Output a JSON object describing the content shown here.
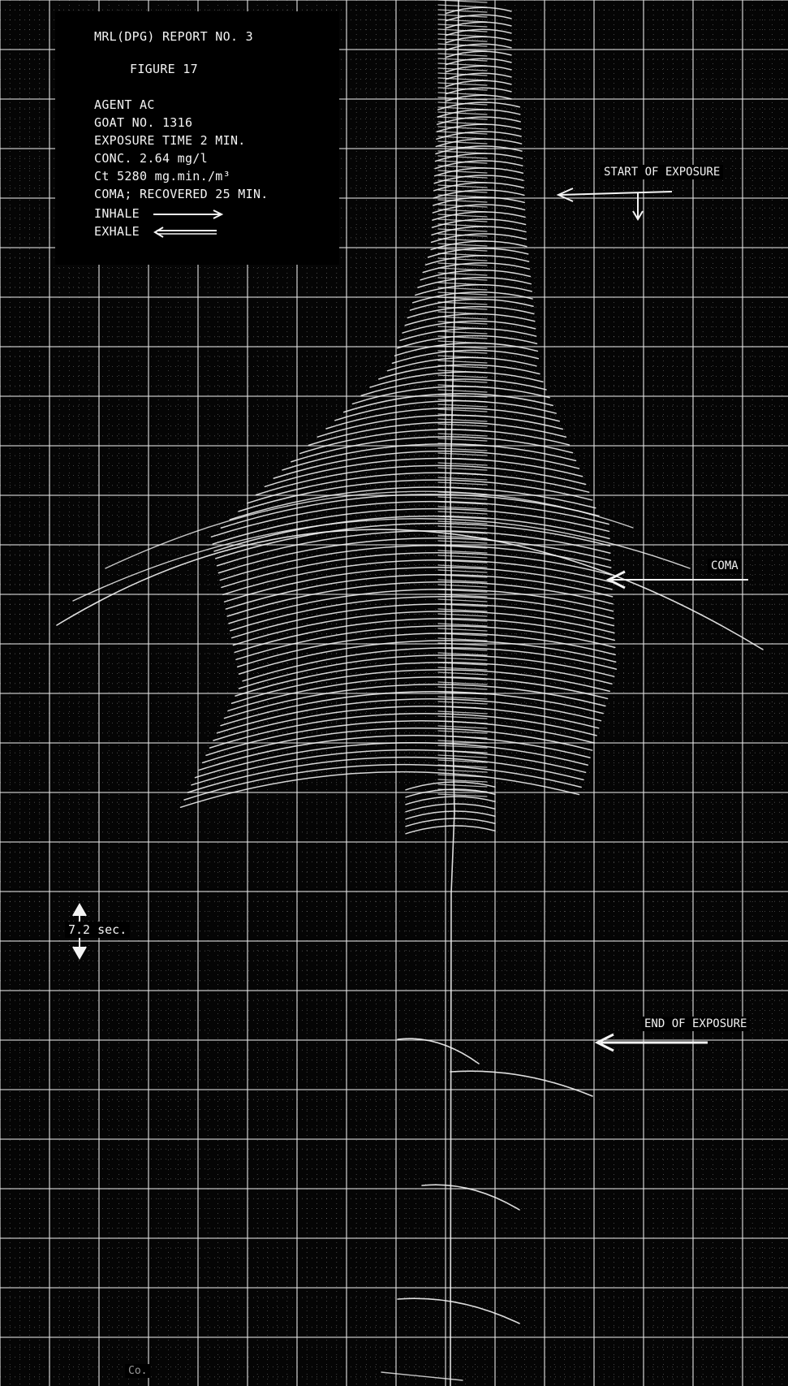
{
  "header": {
    "report": "MRL(DPG) REPORT NO. 3",
    "figure": "FIGURE 17"
  },
  "legend": {
    "agent": "AGENT AC",
    "subject": "GOAT NO. 1316",
    "exposure_time": "EXPOSURE TIME 2 MIN.",
    "concentration": "CONC. 2.64 mg/l",
    "ct": "Ct 5280 mg.min./m³",
    "outcome": "COMA; RECOVERED 25 MIN.",
    "inhale_label": "INHALE",
    "exhale_label": "EXHALE"
  },
  "chart_data": {
    "type": "line",
    "title": "",
    "xlabel": "",
    "ylabel": "",
    "grid": true,
    "time_scale_marker": "7.2 sec.",
    "annotations": [
      {
        "id": "start",
        "text": "START OF EXPOSURE"
      },
      {
        "id": "coma",
        "text": "COMA"
      },
      {
        "id": "end",
        "text": "END OF EXPOSURE"
      }
    ],
    "colors": {
      "background": "#050505",
      "trace": "#f4f4f4",
      "grid": "#e6e6e6"
    }
  },
  "footer": {
    "mark": "Co."
  }
}
